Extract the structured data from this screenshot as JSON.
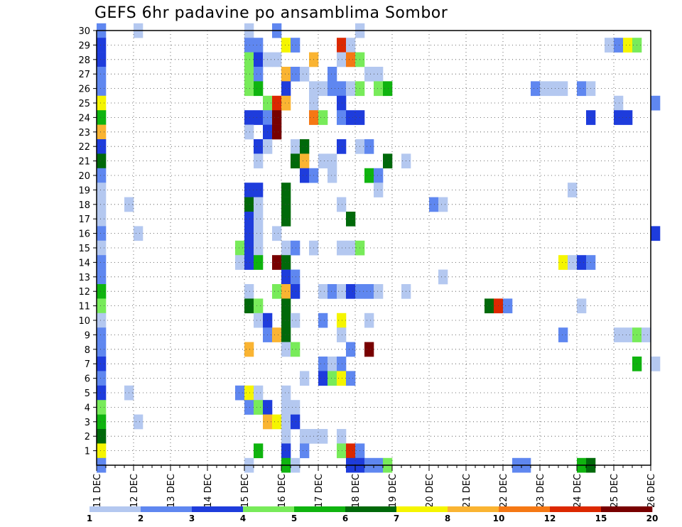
{
  "chart_data": {
    "type": "heatmap",
    "title": "GEFS 6hr padavine po ansamblima Sombor",
    "xlabel": "",
    "ylabel": "",
    "x_ticks": [
      "11 DEC",
      "12 DEC",
      "13 DEC",
      "14 DEC",
      "15 DEC",
      "16 DEC",
      "17 DEC",
      "18 DEC",
      "19 DEC",
      "20 DEC",
      "21 DEC",
      "22 DEC",
      "23 DEC",
      "24 DEC",
      "25 DEC",
      "26 DEC"
    ],
    "y_ticks": [
      "1",
      "2",
      "3",
      "4",
      "5",
      "6",
      "7",
      "8",
      "9",
      "10",
      "11",
      "12",
      "13",
      "14",
      "15",
      "16",
      "17",
      "18",
      "19",
      "20",
      "21",
      "22",
      "23",
      "24",
      "25",
      "26",
      "27",
      "28",
      "29",
      "30"
    ],
    "x_range_steps": [
      0,
      60
    ],
    "y_range_members": [
      0,
      30
    ],
    "grid": true,
    "legend": {
      "placement": "bottom",
      "levels": [
        "1",
        "2",
        "3",
        "4",
        "5",
        "6",
        "7",
        "8",
        "10",
        "12",
        "15",
        "20"
      ],
      "colors": [
        "#b4c8f0",
        "#5f87f0",
        "#1e3cdc",
        "#78eb5a",
        "#0fb40f",
        "#00690a",
        "#f5f500",
        "#fab432",
        "#f57814",
        "#dc2800",
        "#780000"
      ]
    },
    "cells": [
      {
        "m": 30,
        "t": 0,
        "c": 2
      },
      {
        "m": 30,
        "t": 4,
        "c": 1
      },
      {
        "m": 30,
        "t": 16,
        "c": 1
      },
      {
        "m": 30,
        "t": 19,
        "c": 2
      },
      {
        "m": 30,
        "t": 28,
        "c": 1
      },
      {
        "m": 29,
        "t": 0,
        "c": 3
      },
      {
        "m": 29,
        "t": 16,
        "c": 2
      },
      {
        "m": 29,
        "t": 17,
        "c": 2
      },
      {
        "m": 29,
        "t": 20,
        "c": 7
      },
      {
        "m": 29,
        "t": 21,
        "c": 2
      },
      {
        "m": 29,
        "t": 26,
        "c": 10
      },
      {
        "m": 29,
        "t": 27,
        "c": 1
      },
      {
        "m": 29,
        "t": 55,
        "c": 1
      },
      {
        "m": 29,
        "t": 56,
        "c": 2
      },
      {
        "m": 29,
        "t": 57,
        "c": 7
      },
      {
        "m": 29,
        "t": 58,
        "c": 4
      },
      {
        "m": 28,
        "t": 0,
        "c": 3
      },
      {
        "m": 28,
        "t": 16,
        "c": 4
      },
      {
        "m": 28,
        "t": 17,
        "c": 3
      },
      {
        "m": 28,
        "t": 18,
        "c": 1
      },
      {
        "m": 28,
        "t": 19,
        "c": 1
      },
      {
        "m": 28,
        "t": 23,
        "c": 8
      },
      {
        "m": 28,
        "t": 26,
        "c": 1
      },
      {
        "m": 28,
        "t": 27,
        "c": 9
      },
      {
        "m": 28,
        "t": 28,
        "c": 4
      },
      {
        "m": 27,
        "t": 0,
        "c": 2
      },
      {
        "m": 27,
        "t": 16,
        "c": 4
      },
      {
        "m": 27,
        "t": 17,
        "c": 2
      },
      {
        "m": 27,
        "t": 20,
        "c": 8
      },
      {
        "m": 27,
        "t": 21,
        "c": 2
      },
      {
        "m": 27,
        "t": 22,
        "c": 1
      },
      {
        "m": 27,
        "t": 25,
        "c": 2
      },
      {
        "m": 27,
        "t": 29,
        "c": 1
      },
      {
        "m": 27,
        "t": 30,
        "c": 1
      },
      {
        "m": 26,
        "t": 0,
        "c": 2
      },
      {
        "m": 26,
        "t": 16,
        "c": 4
      },
      {
        "m": 26,
        "t": 17,
        "c": 5
      },
      {
        "m": 26,
        "t": 20,
        "c": 3
      },
      {
        "m": 26,
        "t": 23,
        "c": 1
      },
      {
        "m": 26,
        "t": 24,
        "c": 1
      },
      {
        "m": 26,
        "t": 25,
        "c": 2
      },
      {
        "m": 26,
        "t": 26,
        "c": 2
      },
      {
        "m": 26,
        "t": 27,
        "c": 1
      },
      {
        "m": 26,
        "t": 28,
        "c": 4
      },
      {
        "m": 26,
        "t": 30,
        "c": 4
      },
      {
        "m": 26,
        "t": 31,
        "c": 5
      },
      {
        "m": 26,
        "t": 47,
        "c": 2
      },
      {
        "m": 26,
        "t": 48,
        "c": 1
      },
      {
        "m": 26,
        "t": 49,
        "c": 1
      },
      {
        "m": 26,
        "t": 50,
        "c": 1
      },
      {
        "m": 26,
        "t": 52,
        "c": 2
      },
      {
        "m": 26,
        "t": 53,
        "c": 1
      },
      {
        "m": 25,
        "t": 0,
        "c": 7
      },
      {
        "m": 25,
        "t": 18,
        "c": 4
      },
      {
        "m": 25,
        "t": 19,
        "c": 10
      },
      {
        "m": 25,
        "t": 20,
        "c": 8
      },
      {
        "m": 25,
        "t": 23,
        "c": 1
      },
      {
        "m": 25,
        "t": 26,
        "c": 3
      },
      {
        "m": 25,
        "t": 56,
        "c": 1
      },
      {
        "m": 25,
        "t": 60,
        "c": 2
      },
      {
        "m": 24,
        "t": 0,
        "c": 5
      },
      {
        "m": 24,
        "t": 16,
        "c": 3
      },
      {
        "m": 24,
        "t": 17,
        "c": 3
      },
      {
        "m": 24,
        "t": 18,
        "c": 2
      },
      {
        "m": 24,
        "t": 19,
        "c": 11
      },
      {
        "m": 24,
        "t": 23,
        "c": 9
      },
      {
        "m": 24,
        "t": 24,
        "c": 4
      },
      {
        "m": 24,
        "t": 26,
        "c": 2
      },
      {
        "m": 24,
        "t": 27,
        "c": 3
      },
      {
        "m": 24,
        "t": 28,
        "c": 3
      },
      {
        "m": 24,
        "t": 53,
        "c": 3
      },
      {
        "m": 24,
        "t": 56,
        "c": 3
      },
      {
        "m": 24,
        "t": 57,
        "c": 3
      },
      {
        "m": 23,
        "t": 0,
        "c": 8
      },
      {
        "m": 23,
        "t": 16,
        "c": 1
      },
      {
        "m": 23,
        "t": 18,
        "c": 3
      },
      {
        "m": 23,
        "t": 19,
        "c": 11
      },
      {
        "m": 22,
        "t": 0,
        "c": 3
      },
      {
        "m": 22,
        "t": 17,
        "c": 3
      },
      {
        "m": 22,
        "t": 18,
        "c": 1
      },
      {
        "m": 22,
        "t": 21,
        "c": 1
      },
      {
        "m": 22,
        "t": 22,
        "c": 6
      },
      {
        "m": 22,
        "t": 26,
        "c": 3
      },
      {
        "m": 22,
        "t": 28,
        "c": 1
      },
      {
        "m": 22,
        "t": 29,
        "c": 2
      },
      {
        "m": 21,
        "t": 0,
        "c": 6
      },
      {
        "m": 21,
        "t": 17,
        "c": 1
      },
      {
        "m": 21,
        "t": 21,
        "c": 6
      },
      {
        "m": 21,
        "t": 22,
        "c": 8
      },
      {
        "m": 21,
        "t": 24,
        "c": 1
      },
      {
        "m": 21,
        "t": 25,
        "c": 1
      },
      {
        "m": 21,
        "t": 31,
        "c": 6
      },
      {
        "m": 21,
        "t": 33,
        "c": 1
      },
      {
        "m": 20,
        "t": 0,
        "c": 2
      },
      {
        "m": 20,
        "t": 22,
        "c": 3
      },
      {
        "m": 20,
        "t": 23,
        "c": 2
      },
      {
        "m": 20,
        "t": 25,
        "c": 1
      },
      {
        "m": 20,
        "t": 29,
        "c": 5
      },
      {
        "m": 20,
        "t": 30,
        "c": 2
      },
      {
        "m": 19,
        "t": 0,
        "c": 1
      },
      {
        "m": 19,
        "t": 16,
        "c": 3
      },
      {
        "m": 19,
        "t": 17,
        "c": 3
      },
      {
        "m": 19,
        "t": 20,
        "c": 6
      },
      {
        "m": 19,
        "t": 30,
        "c": 1
      },
      {
        "m": 19,
        "t": 51,
        "c": 1
      },
      {
        "m": 18,
        "t": 0,
        "c": 1
      },
      {
        "m": 18,
        "t": 3,
        "c": 1
      },
      {
        "m": 18,
        "t": 16,
        "c": 6
      },
      {
        "m": 18,
        "t": 17,
        "c": 1
      },
      {
        "m": 18,
        "t": 20,
        "c": 6
      },
      {
        "m": 18,
        "t": 26,
        "c": 1
      },
      {
        "m": 18,
        "t": 36,
        "c": 2
      },
      {
        "m": 18,
        "t": 37,
        "c": 1
      },
      {
        "m": 17,
        "t": 0,
        "c": 1
      },
      {
        "m": 17,
        "t": 16,
        "c": 3
      },
      {
        "m": 17,
        "t": 17,
        "c": 1
      },
      {
        "m": 17,
        "t": 20,
        "c": 6
      },
      {
        "m": 17,
        "t": 27,
        "c": 6
      },
      {
        "m": 16,
        "t": 0,
        "c": 2
      },
      {
        "m": 16,
        "t": 4,
        "c": 1
      },
      {
        "m": 16,
        "t": 16,
        "c": 3
      },
      {
        "m": 16,
        "t": 17,
        "c": 1
      },
      {
        "m": 16,
        "t": 19,
        "c": 1
      },
      {
        "m": 16,
        "t": 60,
        "c": 3
      },
      {
        "m": 15,
        "t": 0,
        "c": 1
      },
      {
        "m": 15,
        "t": 15,
        "c": 4
      },
      {
        "m": 15,
        "t": 16,
        "c": 3
      },
      {
        "m": 15,
        "t": 17,
        "c": 1
      },
      {
        "m": 15,
        "t": 20,
        "c": 1
      },
      {
        "m": 15,
        "t": 21,
        "c": 2
      },
      {
        "m": 15,
        "t": 23,
        "c": 1
      },
      {
        "m": 15,
        "t": 26,
        "c": 1
      },
      {
        "m": 15,
        "t": 27,
        "c": 1
      },
      {
        "m": 15,
        "t": 28,
        "c": 4
      },
      {
        "m": 14,
        "t": 0,
        "c": 2
      },
      {
        "m": 14,
        "t": 15,
        "c": 1
      },
      {
        "m": 14,
        "t": 16,
        "c": 3
      },
      {
        "m": 14,
        "t": 17,
        "c": 5
      },
      {
        "m": 14,
        "t": 19,
        "c": 11
      },
      {
        "m": 14,
        "t": 20,
        "c": 6
      },
      {
        "m": 14,
        "t": 50,
        "c": 7
      },
      {
        "m": 14,
        "t": 51,
        "c": 1
      },
      {
        "m": 14,
        "t": 52,
        "c": 3
      },
      {
        "m": 14,
        "t": 53,
        "c": 2
      },
      {
        "m": 13,
        "t": 0,
        "c": 2
      },
      {
        "m": 13,
        "t": 20,
        "c": 3
      },
      {
        "m": 13,
        "t": 21,
        "c": 2
      },
      {
        "m": 13,
        "t": 37,
        "c": 1
      },
      {
        "m": 12,
        "t": 0,
        "c": 5
      },
      {
        "m": 12,
        "t": 16,
        "c": 1
      },
      {
        "m": 12,
        "t": 19,
        "c": 4
      },
      {
        "m": 12,
        "t": 20,
        "c": 8
      },
      {
        "m": 12,
        "t": 21,
        "c": 3
      },
      {
        "m": 12,
        "t": 24,
        "c": 1
      },
      {
        "m": 12,
        "t": 25,
        "c": 2
      },
      {
        "m": 12,
        "t": 26,
        "c": 1
      },
      {
        "m": 12,
        "t": 27,
        "c": 3
      },
      {
        "m": 12,
        "t": 28,
        "c": 2
      },
      {
        "m": 12,
        "t": 29,
        "c": 2
      },
      {
        "m": 12,
        "t": 30,
        "c": 1
      },
      {
        "m": 12,
        "t": 33,
        "c": 1
      },
      {
        "m": 11,
        "t": 0,
        "c": 4
      },
      {
        "m": 11,
        "t": 16,
        "c": 6
      },
      {
        "m": 11,
        "t": 17,
        "c": 4
      },
      {
        "m": 11,
        "t": 20,
        "c": 6
      },
      {
        "m": 11,
        "t": 42,
        "c": 6
      },
      {
        "m": 11,
        "t": 43,
        "c": 10
      },
      {
        "m": 11,
        "t": 44,
        "c": 2
      },
      {
        "m": 11,
        "t": 52,
        "c": 1
      },
      {
        "m": 10,
        "t": 0,
        "c": 1
      },
      {
        "m": 10,
        "t": 17,
        "c": 1
      },
      {
        "m": 10,
        "t": 18,
        "c": 3
      },
      {
        "m": 10,
        "t": 20,
        "c": 6
      },
      {
        "m": 10,
        "t": 21,
        "c": 1
      },
      {
        "m": 10,
        "t": 24,
        "c": 2
      },
      {
        "m": 10,
        "t": 26,
        "c": 7
      },
      {
        "m": 10,
        "t": 29,
        "c": 1
      },
      {
        "m": 9,
        "t": 0,
        "c": 2
      },
      {
        "m": 9,
        "t": 18,
        "c": 2
      },
      {
        "m": 9,
        "t": 19,
        "c": 8
      },
      {
        "m": 9,
        "t": 20,
        "c": 6
      },
      {
        "m": 9,
        "t": 26,
        "c": 1
      },
      {
        "m": 9,
        "t": 50,
        "c": 2
      },
      {
        "m": 9,
        "t": 56,
        "c": 1
      },
      {
        "m": 9,
        "t": 57,
        "c": 1
      },
      {
        "m": 9,
        "t": 58,
        "c": 4
      },
      {
        "m": 9,
        "t": 59,
        "c": 1
      },
      {
        "m": 8,
        "t": 0,
        "c": 2
      },
      {
        "m": 8,
        "t": 16,
        "c": 8
      },
      {
        "m": 8,
        "t": 20,
        "c": 1
      },
      {
        "m": 8,
        "t": 21,
        "c": 4
      },
      {
        "m": 8,
        "t": 27,
        "c": 2
      },
      {
        "m": 8,
        "t": 29,
        "c": 11
      },
      {
        "m": 7,
        "t": 0,
        "c": 3
      },
      {
        "m": 7,
        "t": 24,
        "c": 2
      },
      {
        "m": 7,
        "t": 25,
        "c": 1
      },
      {
        "m": 7,
        "t": 26,
        "c": 2
      },
      {
        "m": 7,
        "t": 58,
        "c": 5
      },
      {
        "m": 7,
        "t": 60,
        "c": 1
      },
      {
        "m": 6,
        "t": 0,
        "c": 2
      },
      {
        "m": 6,
        "t": 22,
        "c": 1
      },
      {
        "m": 6,
        "t": 24,
        "c": 3
      },
      {
        "m": 6,
        "t": 25,
        "c": 4
      },
      {
        "m": 6,
        "t": 26,
        "c": 7
      },
      {
        "m": 6,
        "t": 27,
        "c": 2
      },
      {
        "m": 5,
        "t": 0,
        "c": 3
      },
      {
        "m": 5,
        "t": 3,
        "c": 1
      },
      {
        "m": 5,
        "t": 15,
        "c": 2
      },
      {
        "m": 5,
        "t": 16,
        "c": 7
      },
      {
        "m": 5,
        "t": 17,
        "c": 1
      },
      {
        "m": 5,
        "t": 20,
        "c": 1
      },
      {
        "m": 4,
        "t": 0,
        "c": 4
      },
      {
        "m": 4,
        "t": 16,
        "c": 2
      },
      {
        "m": 4,
        "t": 17,
        "c": 4
      },
      {
        "m": 4,
        "t": 18,
        "c": 3
      },
      {
        "m": 4,
        "t": 20,
        "c": 1
      },
      {
        "m": 4,
        "t": 21,
        "c": 1
      },
      {
        "m": 3,
        "t": 0,
        "c": 5
      },
      {
        "m": 3,
        "t": 4,
        "c": 1
      },
      {
        "m": 3,
        "t": 18,
        "c": 8
      },
      {
        "m": 3,
        "t": 19,
        "c": 7
      },
      {
        "m": 3,
        "t": 20,
        "c": 1
      },
      {
        "m": 3,
        "t": 21,
        "c": 3
      },
      {
        "m": 2,
        "t": 0,
        "c": 6
      },
      {
        "m": 2,
        "t": 20,
        "c": 1
      },
      {
        "m": 2,
        "t": 22,
        "c": 1
      },
      {
        "m": 2,
        "t": 23,
        "c": 1
      },
      {
        "m": 2,
        "t": 24,
        "c": 1
      },
      {
        "m": 2,
        "t": 26,
        "c": 1
      },
      {
        "m": 1,
        "t": 0,
        "c": 7
      },
      {
        "m": 1,
        "t": 17,
        "c": 5
      },
      {
        "m": 1,
        "t": 20,
        "c": 3
      },
      {
        "m": 1,
        "t": 22,
        "c": 2
      },
      {
        "m": 1,
        "t": 26,
        "c": 4
      },
      {
        "m": 1,
        "t": 27,
        "c": 10
      },
      {
        "m": 1,
        "t": 28,
        "c": 2
      },
      {
        "m": 0,
        "t": 0,
        "c": 2
      },
      {
        "m": 0,
        "t": 16,
        "c": 1
      },
      {
        "m": 0,
        "t": 20,
        "c": 5
      },
      {
        "m": 0,
        "t": 21,
        "c": 1
      },
      {
        "m": 0,
        "t": 27,
        "c": 3
      },
      {
        "m": 0,
        "t": 28,
        "c": 3
      },
      {
        "m": 0,
        "t": 29,
        "c": 2
      },
      {
        "m": 0,
        "t": 30,
        "c": 2
      },
      {
        "m": 0,
        "t": 31,
        "c": 4
      },
      {
        "m": 0,
        "t": 45,
        "c": 2
      },
      {
        "m": 0,
        "t": 46,
        "c": 2
      },
      {
        "m": 0,
        "t": 52,
        "c": 5
      },
      {
        "m": 0,
        "t": 53,
        "c": 6
      }
    ]
  }
}
